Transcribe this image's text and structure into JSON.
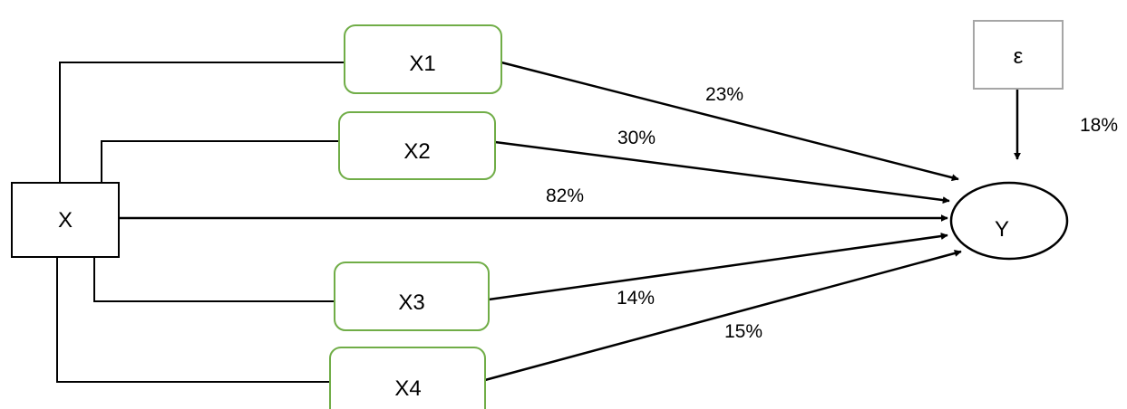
{
  "nodes": {
    "x": "X",
    "x1": "X1",
    "x2": "X2",
    "x3": "X3",
    "x4": "X4",
    "y": "Y",
    "epsilon": "ε"
  },
  "paths": {
    "x1_y": "23%",
    "x2_y": "30%",
    "x_y": "82%",
    "x3_y": "14%",
    "x4_y": "15%",
    "epsilon_y": "18%"
  },
  "colors": {
    "mediator_border": "#70ad47",
    "error_border": "#a6a6a6",
    "line": "#000000"
  }
}
